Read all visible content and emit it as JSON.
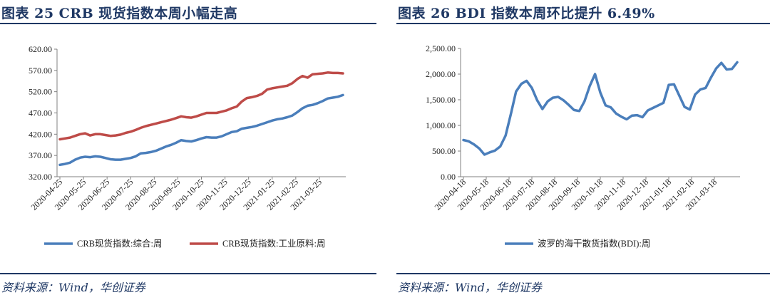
{
  "figures": [
    {
      "title": "图表 25   CRB 现货指数本周小幅走高",
      "source": "资料来源：Wind，华创证券"
    },
    {
      "title": "图表 26   BDI 指数本周环比提升 6.49%",
      "source": "资料来源：Wind，华创证券"
    }
  ],
  "colors": {
    "brand": "#1f3864",
    "blue_series": "#4a7ebb",
    "red_series": "#be4b48"
  },
  "chart_data": [
    {
      "type": "line",
      "title": "CRB 现货指数本周小幅走高",
      "xlabel": "",
      "ylabel": "",
      "ylim": [
        320,
        620
      ],
      "yticks": [
        "320.00",
        "370.00",
        "420.00",
        "470.00",
        "520.00",
        "570.00",
        "620.00"
      ],
      "x_tick_labels": [
        "2020-04-25",
        "2020-05-25",
        "2020-06-25",
        "2020-07-25",
        "2020-08-25",
        "2020-09-25",
        "2020-10-25",
        "2020-11-25",
        "2020-12-25",
        "2021-01-25",
        "2021-02-25",
        "2021-03-25"
      ],
      "legend_position": "bottom",
      "series": [
        {
          "name": "CRB现货指数:综合:周",
          "color": "#4a7ebb",
          "values": [
            348,
            350,
            353,
            360,
            365,
            367,
            366,
            368,
            367,
            364,
            361,
            360,
            360,
            362,
            364,
            368,
            375,
            376,
            378,
            381,
            386,
            391,
            395,
            400,
            406,
            404,
            403,
            406,
            410,
            413,
            412,
            412,
            415,
            420,
            425,
            427,
            433,
            435,
            437,
            440,
            444,
            448,
            452,
            455,
            457,
            460,
            464,
            472,
            481,
            487,
            489,
            493,
            498,
            504,
            506,
            508,
            512
          ]
        },
        {
          "name": "CRB现货指数:工业原料:周",
          "color": "#be4b48",
          "values": [
            408,
            410,
            412,
            416,
            420,
            422,
            417,
            420,
            420,
            418,
            416,
            417,
            419,
            423,
            426,
            430,
            435,
            439,
            442,
            445,
            448,
            451,
            454,
            458,
            462,
            460,
            459,
            462,
            466,
            470,
            470,
            470,
            473,
            476,
            481,
            485,
            497,
            505,
            507,
            510,
            515,
            525,
            528,
            530,
            532,
            534,
            540,
            550,
            557,
            553,
            561,
            562,
            563,
            565,
            564,
            564,
            563
          ]
        }
      ]
    },
    {
      "type": "line",
      "title": "BDI 指数本周环比提升 6.49%",
      "xlabel": "",
      "ylabel": "",
      "ylim": [
        0,
        2500
      ],
      "yticks": [
        "0.00",
        "500.00",
        "1,000.00",
        "1,500.00",
        "2,000.00",
        "2,500.00"
      ],
      "x_tick_labels": [
        "2020-04-18",
        "2020-05-18",
        "2020-06-18",
        "2020-07-18",
        "2020-08-18",
        "2020-09-18",
        "2020-10-18",
        "2020-11-18",
        "2020-12-18",
        "2021-01-18",
        "2021-02-18",
        "2021-03-18"
      ],
      "legend_position": "bottom",
      "series": [
        {
          "name": "波罗的海干散货指数(BDI):周",
          "color": "#4a7ebb",
          "values": [
            715,
            690,
            630,
            550,
            430,
            475,
            510,
            590,
            800,
            1220,
            1660,
            1810,
            1870,
            1730,
            1490,
            1320,
            1470,
            1540,
            1555,
            1490,
            1400,
            1300,
            1280,
            1470,
            1770,
            2000,
            1640,
            1390,
            1350,
            1230,
            1170,
            1120,
            1190,
            1200,
            1160,
            1290,
            1340,
            1390,
            1440,
            1790,
            1800,
            1580,
            1360,
            1310,
            1600,
            1700,
            1730,
            1930,
            2110,
            2220,
            2090,
            2100,
            2230
          ]
        }
      ]
    }
  ]
}
